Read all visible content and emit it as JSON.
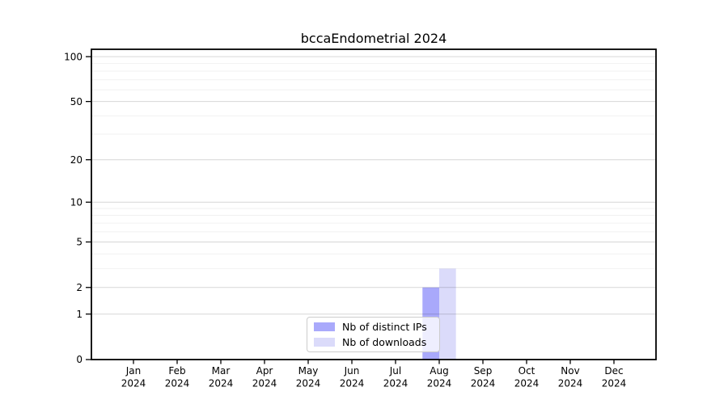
{
  "chart_data": {
    "type": "bar",
    "title": "bccaEndometrial 2024",
    "categories": [
      "Jan",
      "Feb",
      "Mar",
      "Apr",
      "May",
      "Jun",
      "Jul",
      "Aug",
      "Sep",
      "Oct",
      "Nov",
      "Dec"
    ],
    "category_year": "2024",
    "series": [
      {
        "name": "Nb of distinct IPs",
        "color": "#a9a9fb",
        "values": [
          0,
          0,
          0,
          0,
          0,
          0,
          0,
          2,
          0,
          0,
          0,
          0
        ]
      },
      {
        "name": "Nb of downloads",
        "color": "#dbdbfa",
        "values": [
          0,
          0,
          0,
          0,
          0,
          0,
          0,
          3,
          0,
          0,
          0,
          0
        ]
      }
    ],
    "y_scale": "log10(1+v)",
    "y_tick_labels": [
      "0",
      "1",
      "2",
      "5",
      "10",
      "20",
      "50",
      "100"
    ],
    "y_ticks": [
      0,
      1,
      2,
      5,
      10,
      20,
      50,
      100
    ],
    "y_minor_ticks": [
      3,
      4,
      6,
      7,
      8,
      9,
      30,
      40,
      60,
      70,
      80,
      90
    ],
    "ylim": [
      0,
      112
    ],
    "grid": "on",
    "legend_position": "bottom-center",
    "colors": {
      "axis": "#000000",
      "grid_major": "rgba(0,0,0,0.16)",
      "grid_minor": "rgba(0,0,0,0.055)",
      "background": "#ffffff"
    }
  }
}
